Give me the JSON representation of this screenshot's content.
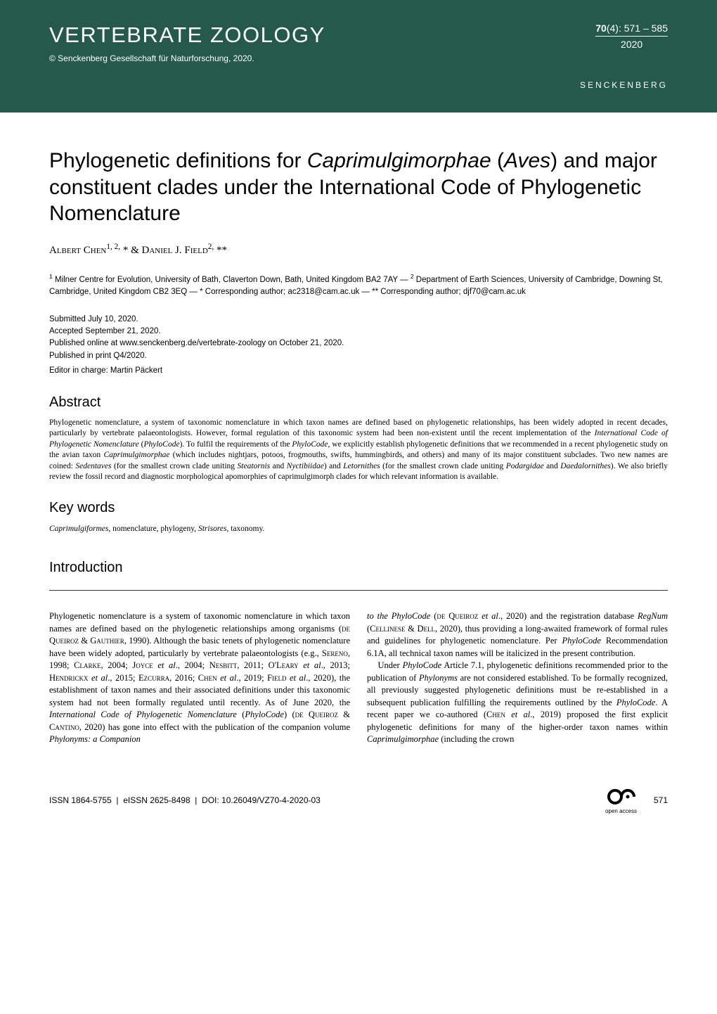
{
  "header": {
    "journal_title": "VERTEBRATE ZOOLOGY",
    "volume": "70",
    "issue": "(4): 571 – 585",
    "year": "2020",
    "copyright": "© Senckenberg Gesellschaft für Naturforschung, 2020.",
    "publisher": "SENCKENBERG"
  },
  "article": {
    "title_html": "Phylogenetic definitions for <i>Caprimulgimorphae</i> (<i>Aves</i>) and major constituent clades under the International Code of Phylogenetic Nomenclature",
    "authors_html": "Albert Chen<sup>1, 2,</sup> * & Daniel J. Field<sup>2,</sup> **",
    "affiliations_html": "<sup>1</sup> Milner Centre for Evolution, University of Bath, Claverton Down, Bath, United Kingdom BA2 7AY — <sup>2</sup> Department of Earth Sciences, University of Cambridge, Downing St, Cambridge, United Kingdom CB2 3EQ — * Corresponding author; ac2318@cam.ac.uk — ** Corresponding author; djf70@cam.ac.uk",
    "dates": {
      "submitted": "Submitted July 10, 2020.",
      "accepted": "Accepted September 21, 2020.",
      "published_online": "Published online at www.senckenberg.de/vertebrate-zoology on October 21, 2020.",
      "published_print": "Published in print Q4/2020."
    },
    "editor": "Editor in charge: Martin Päckert"
  },
  "abstract": {
    "heading": "Abstract",
    "text_html": "Phylogenetic nomenclature, a system of taxonomic nomenclature in which taxon names are defined based on phylogenetic relationships, has been widely adopted in recent decades, particularly by vertebrate palaeontologists. However, formal regulation of this taxonomic system had been non-existent until the recent implementation of the <i>International Code of Phylogenetic Nomenclature</i> (<i>PhyloCode</i>). To fulfil the requirements of the <i>PhyloCode</i>, we explicitly establish phylogenetic definitions that we recommended in a recent phylogenetic study on the avian taxon <i>Caprimulgimorphae</i> (which includes nightjars, potoos, frogmouths, swifts, hummingbirds, and others) and many of its major constituent subclades. Two new names are coined: <i>Sedentaves</i> (for the smallest crown clade uniting <i>Steatornis</i> and <i>Nyctibiidae</i>) and <i>Letornithes</i> (for the smallest crown clade uniting <i>Podargidae</i> and <i>Daedalornithes</i>). We also briefly review the fossil record and diagnostic morphological apomorphies of caprimulgimorph clades for which relevant information is available."
  },
  "keywords": {
    "heading": "Key words",
    "text_html": "<i>Caprimulgiformes</i>, nomenclature, phylogeny, <i>Strisores</i>, taxonomy."
  },
  "introduction": {
    "heading": "Introduction",
    "col1_html": "Phylogenetic nomenclature is a system of taxonomic nomenclature in which taxon names are defined based on the phylogenetic relationships among organisms (<span style='font-variant:small-caps'>de Queiroz & Gauthier</span>, 1990). Although the basic tenets of phylogenetic nomenclature have been widely adopted, particularly by vertebrate palaeontologists (e.g., <span style='font-variant:small-caps'>Sereno</span>, 1998; <span style='font-variant:small-caps'>Clarke</span>, 2004; <span style='font-variant:small-caps'>Joyce</span> <i>et al</i>., 2004; <span style='font-variant:small-caps'>Nesbitt</span>, 2011; O'<span style='font-variant:small-caps'>Leary</span> <i>et al</i>., 2013; <span style='font-variant:small-caps'>Hendrickx</span> <i>et al</i>., 2015; <span style='font-variant:small-caps'>Ezcurra</span>, 2016; <span style='font-variant:small-caps'>Chen</span> <i>et al</i>., 2019; <span style='font-variant:small-caps'>Field</span> <i>et al</i>., 2020), the establishment of taxon names and their associated definitions under this taxonomic system had not been formally regulated until recently. As of June 2020, the <i>International Code of Phylogenetic Nomenclature</i> (<i>PhyloCode</i>) (<span style='font-variant:small-caps'>de Queiroz & Cantino</span>, 2020) has gone into effect with the publication of the companion volume <i>Phylonyms: a Companion</i>",
    "col2_html": "<i>to the PhyloCode</i> (<span style='font-variant:small-caps'>de Queiroz</span> <i>et al</i>., 2020) and the registration database <i>RegNum</i> (<span style='font-variant:small-caps'>Cellinese & Dell</span>, 2020), thus providing a long-awaited framework of formal rules and guidelines for phylogenetic nomenclature. Per <i>PhyloCode</i> Recommendation 6.1A, all technical taxon names will be italicized in the present contribution.<br>&nbsp;&nbsp;&nbsp;&nbsp;Under <i>PhyloCode</i> Article 7.1, phylogenetic definitions recommended prior to the publication of <i>Phylonyms</i> are not considered established. To be formally recognized, all previously suggested phylogenetic definitions must be re-established in a subsequent publication fulfilling the requirements outlined by the <i>PhyloCode</i>. A recent paper we co-authored (<span style='font-variant:small-caps'>Chen</span> <i>et al</i>., 2019) proposed the first explicit phylogenetic definitions for many of the higher-order taxon names within <i>Caprimulgimorphae</i> (including the crown"
  },
  "footer": {
    "issn": "ISSN 1864-5755",
    "eissn": "eISSN 2625-8498",
    "doi_label": "DOI:",
    "doi": "10.26049/VZ70-4-2020-03",
    "page": "571",
    "oa_label": "open access"
  },
  "colors": {
    "header_bg": "#24594b",
    "header_text": "#ffffff",
    "body_text": "#000000"
  }
}
